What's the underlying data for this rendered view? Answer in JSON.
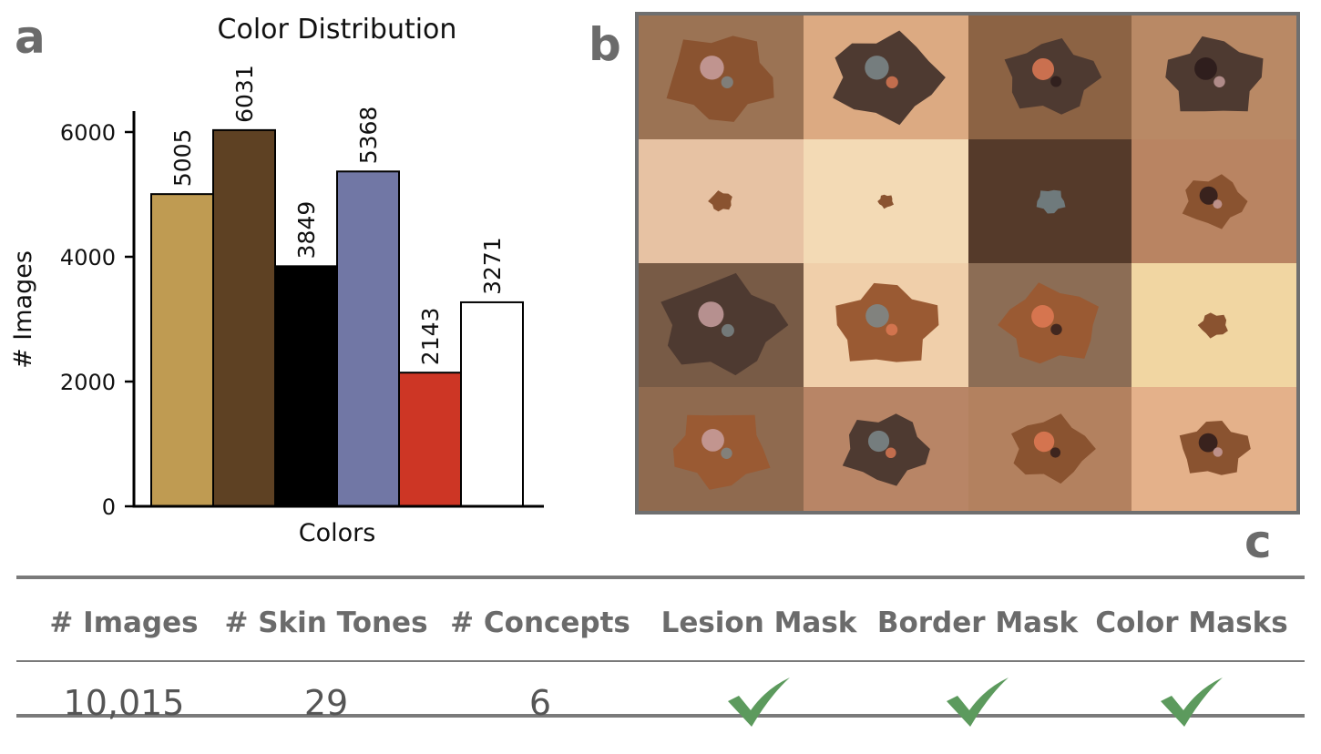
{
  "panels": {
    "a": "a",
    "b": "b",
    "c": "c"
  },
  "chart_data": {
    "type": "bar",
    "title": "Color Distribution",
    "xlabel": "Colors",
    "ylabel": "# Images",
    "ylim": [
      0,
      6300
    ],
    "yticks": [
      0,
      2000,
      4000,
      6000
    ],
    "values": [
      5005,
      6031,
      3849,
      5368,
      2143,
      3271
    ],
    "value_labels": [
      "5005",
      "6031",
      "3849",
      "5368",
      "2143",
      "3271"
    ],
    "bar_colors": [
      "#bf9b52",
      "#5e4123",
      "#000000",
      "#7177a5",
      "#cd3625",
      "#ffffff"
    ],
    "grid": false,
    "legend": "none"
  },
  "image_grid": {
    "tiles": [
      {
        "bg": "#9b7354",
        "lesion": "#8a5330",
        "size": 0.9
      },
      {
        "bg": "#dcaa82",
        "lesion": "#4e3a31",
        "size": 0.9
      },
      {
        "bg": "#8c6344",
        "lesion": "#4e3a31",
        "size": 0.75
      },
      {
        "bg": "#b98965",
        "lesion": "#4e3a31",
        "size": 0.8
      },
      {
        "bg": "#e7c2a3",
        "lesion": "#8a5330",
        "size": 0.15
      },
      {
        "bg": "#f3dab5",
        "lesion": "#8a5330",
        "size": 0.08
      },
      {
        "bg": "#553a2a",
        "lesion": "#6f7a7c",
        "size": 0.2
      },
      {
        "bg": "#b98462",
        "lesion": "#8a5330",
        "size": 0.5
      },
      {
        "bg": "#785b46",
        "lesion": "#4e3a31",
        "size": 1.0
      },
      {
        "bg": "#f0cfaa",
        "lesion": "#9a5a33",
        "size": 0.85
      },
      {
        "bg": "#8c6d55",
        "lesion": "#9a5a33",
        "size": 0.8
      },
      {
        "bg": "#f1d6a2",
        "lesion": "#8a5330",
        "size": 0.2
      },
      {
        "bg": "#8f6a4f",
        "lesion": "#9a5a33",
        "size": 0.8
      },
      {
        "bg": "#b88566",
        "lesion": "#4e3a31",
        "size": 0.7
      },
      {
        "bg": "#b3815f",
        "lesion": "#8a5330",
        "size": 0.65
      },
      {
        "bg": "#e4b18a",
        "lesion": "#8a5330",
        "size": 0.55
      }
    ]
  },
  "table": {
    "headers": [
      "# Images",
      "# Skin Tones",
      "# Concepts",
      "Lesion Mask",
      "Border Mask",
      "Color Masks"
    ],
    "values": [
      "10,015",
      "29",
      "6"
    ],
    "check_color": "#5c9a5d"
  }
}
